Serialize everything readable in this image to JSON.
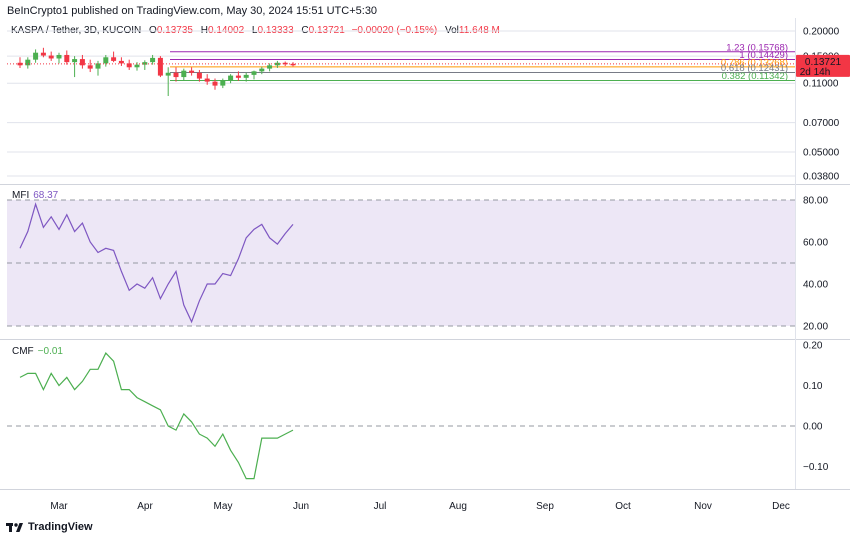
{
  "header": {
    "publisher_line": "BeInCrypto1 published on TradingView.com, May 30, 2024 15:51 UTC+5:30"
  },
  "legend": {
    "symbol": "KASPA / Tether, 3D, KUCOIN",
    "open_key": "O",
    "open": "0.13735",
    "high_key": "H",
    "high": "0.14002",
    "low_key": "L",
    "low": "0.13333",
    "close_key": "C",
    "close": "0.13721",
    "change": "−0.00020 (−0.15%)",
    "vol_key": "Vol",
    "vol": "11.648 M"
  },
  "price_badge": {
    "value": "0.13721",
    "countdown": "2d 14h",
    "color": "#f23645"
  },
  "footer": {
    "brand": "TradingView"
  },
  "colors": {
    "up": "#26a69a",
    "up_candle": "#4caf50",
    "down": "#f23645",
    "mfi_line": "#7e57c2",
    "mfi_band": "#ede7f6",
    "cmf_line": "#4caf50",
    "grid": "#e0e3eb",
    "axis_text": "#131722"
  },
  "chart_data": [
    {
      "type": "candlestick",
      "title": "KASPA / Tether, 3D, KUCOIN",
      "scale": "log",
      "y_ticks": [
        "0.20000",
        "0.15000",
        "0.11000",
        "0.07000",
        "0.05000",
        "0.03800"
      ],
      "x_ticks": [
        "Mar",
        "Apr",
        "May",
        "Jun",
        "Jul",
        "Aug",
        "Sep",
        "Oct",
        "Nov",
        "Dec"
      ],
      "fibonacci": [
        {
          "label": "1.23 (0.15768)",
          "value": 0.15768,
          "color": "#9c27b0"
        },
        {
          "label": "1 (0.14429)",
          "value": 0.14429,
          "color": "#9c27b0"
        },
        {
          "label": "0.786 (0.13268)",
          "value": 0.13268,
          "color": "#ff9800"
        },
        {
          "label": "0.618 (0.12431)",
          "value": 0.12431,
          "color": "#787b86"
        },
        {
          "label": "0.382 (0.11342)",
          "value": 0.11342,
          "color": "#4caf50"
        }
      ],
      "candles": [
        {
          "d": "Feb 15",
          "o": 0.139,
          "h": 0.148,
          "l": 0.131,
          "c": 0.135
        },
        {
          "d": "Feb 18",
          "o": 0.135,
          "h": 0.148,
          "l": 0.13,
          "c": 0.144
        },
        {
          "d": "Feb 21",
          "o": 0.144,
          "h": 0.162,
          "l": 0.139,
          "c": 0.156
        },
        {
          "d": "Feb 24",
          "o": 0.156,
          "h": 0.165,
          "l": 0.148,
          "c": 0.151
        },
        {
          "d": "Feb 27",
          "o": 0.151,
          "h": 0.158,
          "l": 0.142,
          "c": 0.146
        },
        {
          "d": "Mar 01",
          "o": 0.146,
          "h": 0.156,
          "l": 0.138,
          "c": 0.152
        },
        {
          "d": "Mar 04",
          "o": 0.152,
          "h": 0.16,
          "l": 0.136,
          "c": 0.14
        },
        {
          "d": "Mar 07",
          "o": 0.14,
          "h": 0.15,
          "l": 0.118,
          "c": 0.145
        },
        {
          "d": "Mar 10",
          "o": 0.145,
          "h": 0.152,
          "l": 0.13,
          "c": 0.135
        },
        {
          "d": "Mar 13",
          "o": 0.135,
          "h": 0.144,
          "l": 0.125,
          "c": 0.13
        },
        {
          "d": "Mar 16",
          "o": 0.13,
          "h": 0.142,
          "l": 0.12,
          "c": 0.138
        },
        {
          "d": "Mar 19",
          "o": 0.138,
          "h": 0.152,
          "l": 0.133,
          "c": 0.148
        },
        {
          "d": "Mar 22",
          "o": 0.148,
          "h": 0.158,
          "l": 0.14,
          "c": 0.142
        },
        {
          "d": "Mar 25",
          "o": 0.142,
          "h": 0.148,
          "l": 0.134,
          "c": 0.138
        },
        {
          "d": "Mar 28",
          "o": 0.138,
          "h": 0.144,
          "l": 0.128,
          "c": 0.132
        },
        {
          "d": "Mar 31",
          "o": 0.132,
          "h": 0.14,
          "l": 0.127,
          "c": 0.136
        },
        {
          "d": "Apr 03",
          "o": 0.136,
          "h": 0.143,
          "l": 0.128,
          "c": 0.14
        },
        {
          "d": "Apr 06",
          "o": 0.14,
          "h": 0.152,
          "l": 0.136,
          "c": 0.147
        },
        {
          "d": "Apr 09",
          "o": 0.147,
          "h": 0.15,
          "l": 0.118,
          "c": 0.12
        },
        {
          "d": "Apr 12",
          "o": 0.12,
          "h": 0.132,
          "l": 0.095,
          "c": 0.124
        },
        {
          "d": "Apr 15",
          "o": 0.124,
          "h": 0.132,
          "l": 0.112,
          "c": 0.118
        },
        {
          "d": "Apr 18",
          "o": 0.118,
          "h": 0.13,
          "l": 0.113,
          "c": 0.127
        },
        {
          "d": "Apr 21",
          "o": 0.127,
          "h": 0.132,
          "l": 0.12,
          "c": 0.124
        },
        {
          "d": "Apr 24",
          "o": 0.124,
          "h": 0.128,
          "l": 0.112,
          "c": 0.116
        },
        {
          "d": "Apr 27",
          "o": 0.116,
          "h": 0.122,
          "l": 0.108,
          "c": 0.112
        },
        {
          "d": "Apr 30",
          "o": 0.112,
          "h": 0.116,
          "l": 0.102,
          "c": 0.107
        },
        {
          "d": "May 03",
          "o": 0.107,
          "h": 0.116,
          "l": 0.104,
          "c": 0.113
        },
        {
          "d": "May 06",
          "o": 0.113,
          "h": 0.122,
          "l": 0.11,
          "c": 0.12
        },
        {
          "d": "May 09",
          "o": 0.12,
          "h": 0.126,
          "l": 0.113,
          "c": 0.117
        },
        {
          "d": "May 12",
          "o": 0.117,
          "h": 0.124,
          "l": 0.112,
          "c": 0.121
        },
        {
          "d": "May 15",
          "o": 0.121,
          "h": 0.127,
          "l": 0.115,
          "c": 0.126
        },
        {
          "d": "May 18",
          "o": 0.126,
          "h": 0.133,
          "l": 0.122,
          "c": 0.13
        },
        {
          "d": "May 21",
          "o": 0.13,
          "h": 0.138,
          "l": 0.126,
          "c": 0.135
        },
        {
          "d": "May 24",
          "o": 0.135,
          "h": 0.142,
          "l": 0.131,
          "c": 0.139
        },
        {
          "d": "May 27",
          "o": 0.139,
          "h": 0.141,
          "l": 0.134,
          "c": 0.1374
        },
        {
          "d": "May 30",
          "o": 0.13735,
          "h": 0.14002,
          "l": 0.13333,
          "c": 0.13721
        }
      ]
    },
    {
      "type": "line",
      "title": "MFI",
      "current": "68.37",
      "y_ticks": [
        "80.00",
        "60.00",
        "40.00",
        "20.00"
      ],
      "band": [
        20,
        80
      ],
      "midline": 50,
      "dates": [
        "Feb 15",
        "Feb 18",
        "Feb 21",
        "Feb 24",
        "Feb 27",
        "Mar 01",
        "Mar 04",
        "Mar 07",
        "Mar 10",
        "Mar 13",
        "Mar 16",
        "Mar 19",
        "Mar 22",
        "Mar 25",
        "Mar 28",
        "Mar 31",
        "Apr 03",
        "Apr 06",
        "Apr 09",
        "Apr 12",
        "Apr 15",
        "Apr 18",
        "Apr 21",
        "Apr 24",
        "Apr 27",
        "Apr 30",
        "May 03",
        "May 06",
        "May 09",
        "May 12",
        "May 15",
        "May 18",
        "May 21",
        "May 24",
        "May 27",
        "May 30"
      ],
      "values": [
        57,
        65,
        78,
        67,
        72,
        66,
        73,
        65,
        69,
        60,
        55,
        57,
        56,
        46,
        37,
        40,
        38,
        43,
        33,
        40,
        46,
        30,
        22,
        32,
        40,
        40,
        45,
        44,
        52,
        62,
        66,
        68.37,
        62,
        59,
        64,
        68.37
      ]
    },
    {
      "type": "line",
      "title": "CMF",
      "current": "−0.01",
      "y_ticks": [
        "0.20",
        "0.10",
        "0.00",
        "−0.10"
      ],
      "zero_line": 0,
      "dates": [
        "Feb 15",
        "Feb 18",
        "Feb 21",
        "Feb 24",
        "Feb 27",
        "Mar 01",
        "Mar 04",
        "Mar 07",
        "Mar 10",
        "Mar 13",
        "Mar 16",
        "Mar 19",
        "Mar 22",
        "Mar 25",
        "Mar 28",
        "Mar 31",
        "Apr 03",
        "Apr 06",
        "Apr 09",
        "Apr 12",
        "Apr 15",
        "Apr 18",
        "Apr 21",
        "Apr 24",
        "Apr 27",
        "Apr 30",
        "May 03",
        "May 06",
        "May 09",
        "May 12",
        "May 15",
        "May 18",
        "May 21",
        "May 24",
        "May 27",
        "May 30"
      ],
      "values": [
        0.12,
        0.13,
        0.13,
        0.09,
        0.13,
        0.1,
        0.12,
        0.09,
        0.11,
        0.14,
        0.14,
        0.18,
        0.16,
        0.09,
        0.09,
        0.07,
        0.06,
        0.05,
        0.04,
        0.0,
        -0.01,
        0.03,
        0.01,
        -0.02,
        -0.03,
        -0.05,
        -0.02,
        -0.06,
        -0.09,
        -0.13,
        -0.13,
        -0.03,
        -0.03,
        -0.03,
        -0.02,
        -0.01
      ]
    }
  ]
}
